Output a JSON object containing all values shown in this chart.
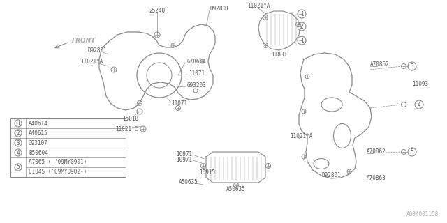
{
  "bg_color": "#ffffff",
  "line_color": "#888888",
  "text_color": "#555555",
  "watermark": "A004001158",
  "legend": [
    {
      "num": "1",
      "code": "A40614"
    },
    {
      "num": "2",
      "code": "A40615"
    },
    {
      "num": "3",
      "code": "G93107"
    },
    {
      "num": "4",
      "code": "B50604"
    },
    {
      "num": "5",
      "code": "A7065 (-'09MY0901)",
      "extra": "0104S ('09MY0902-)"
    }
  ],
  "front_label": "FRONT"
}
